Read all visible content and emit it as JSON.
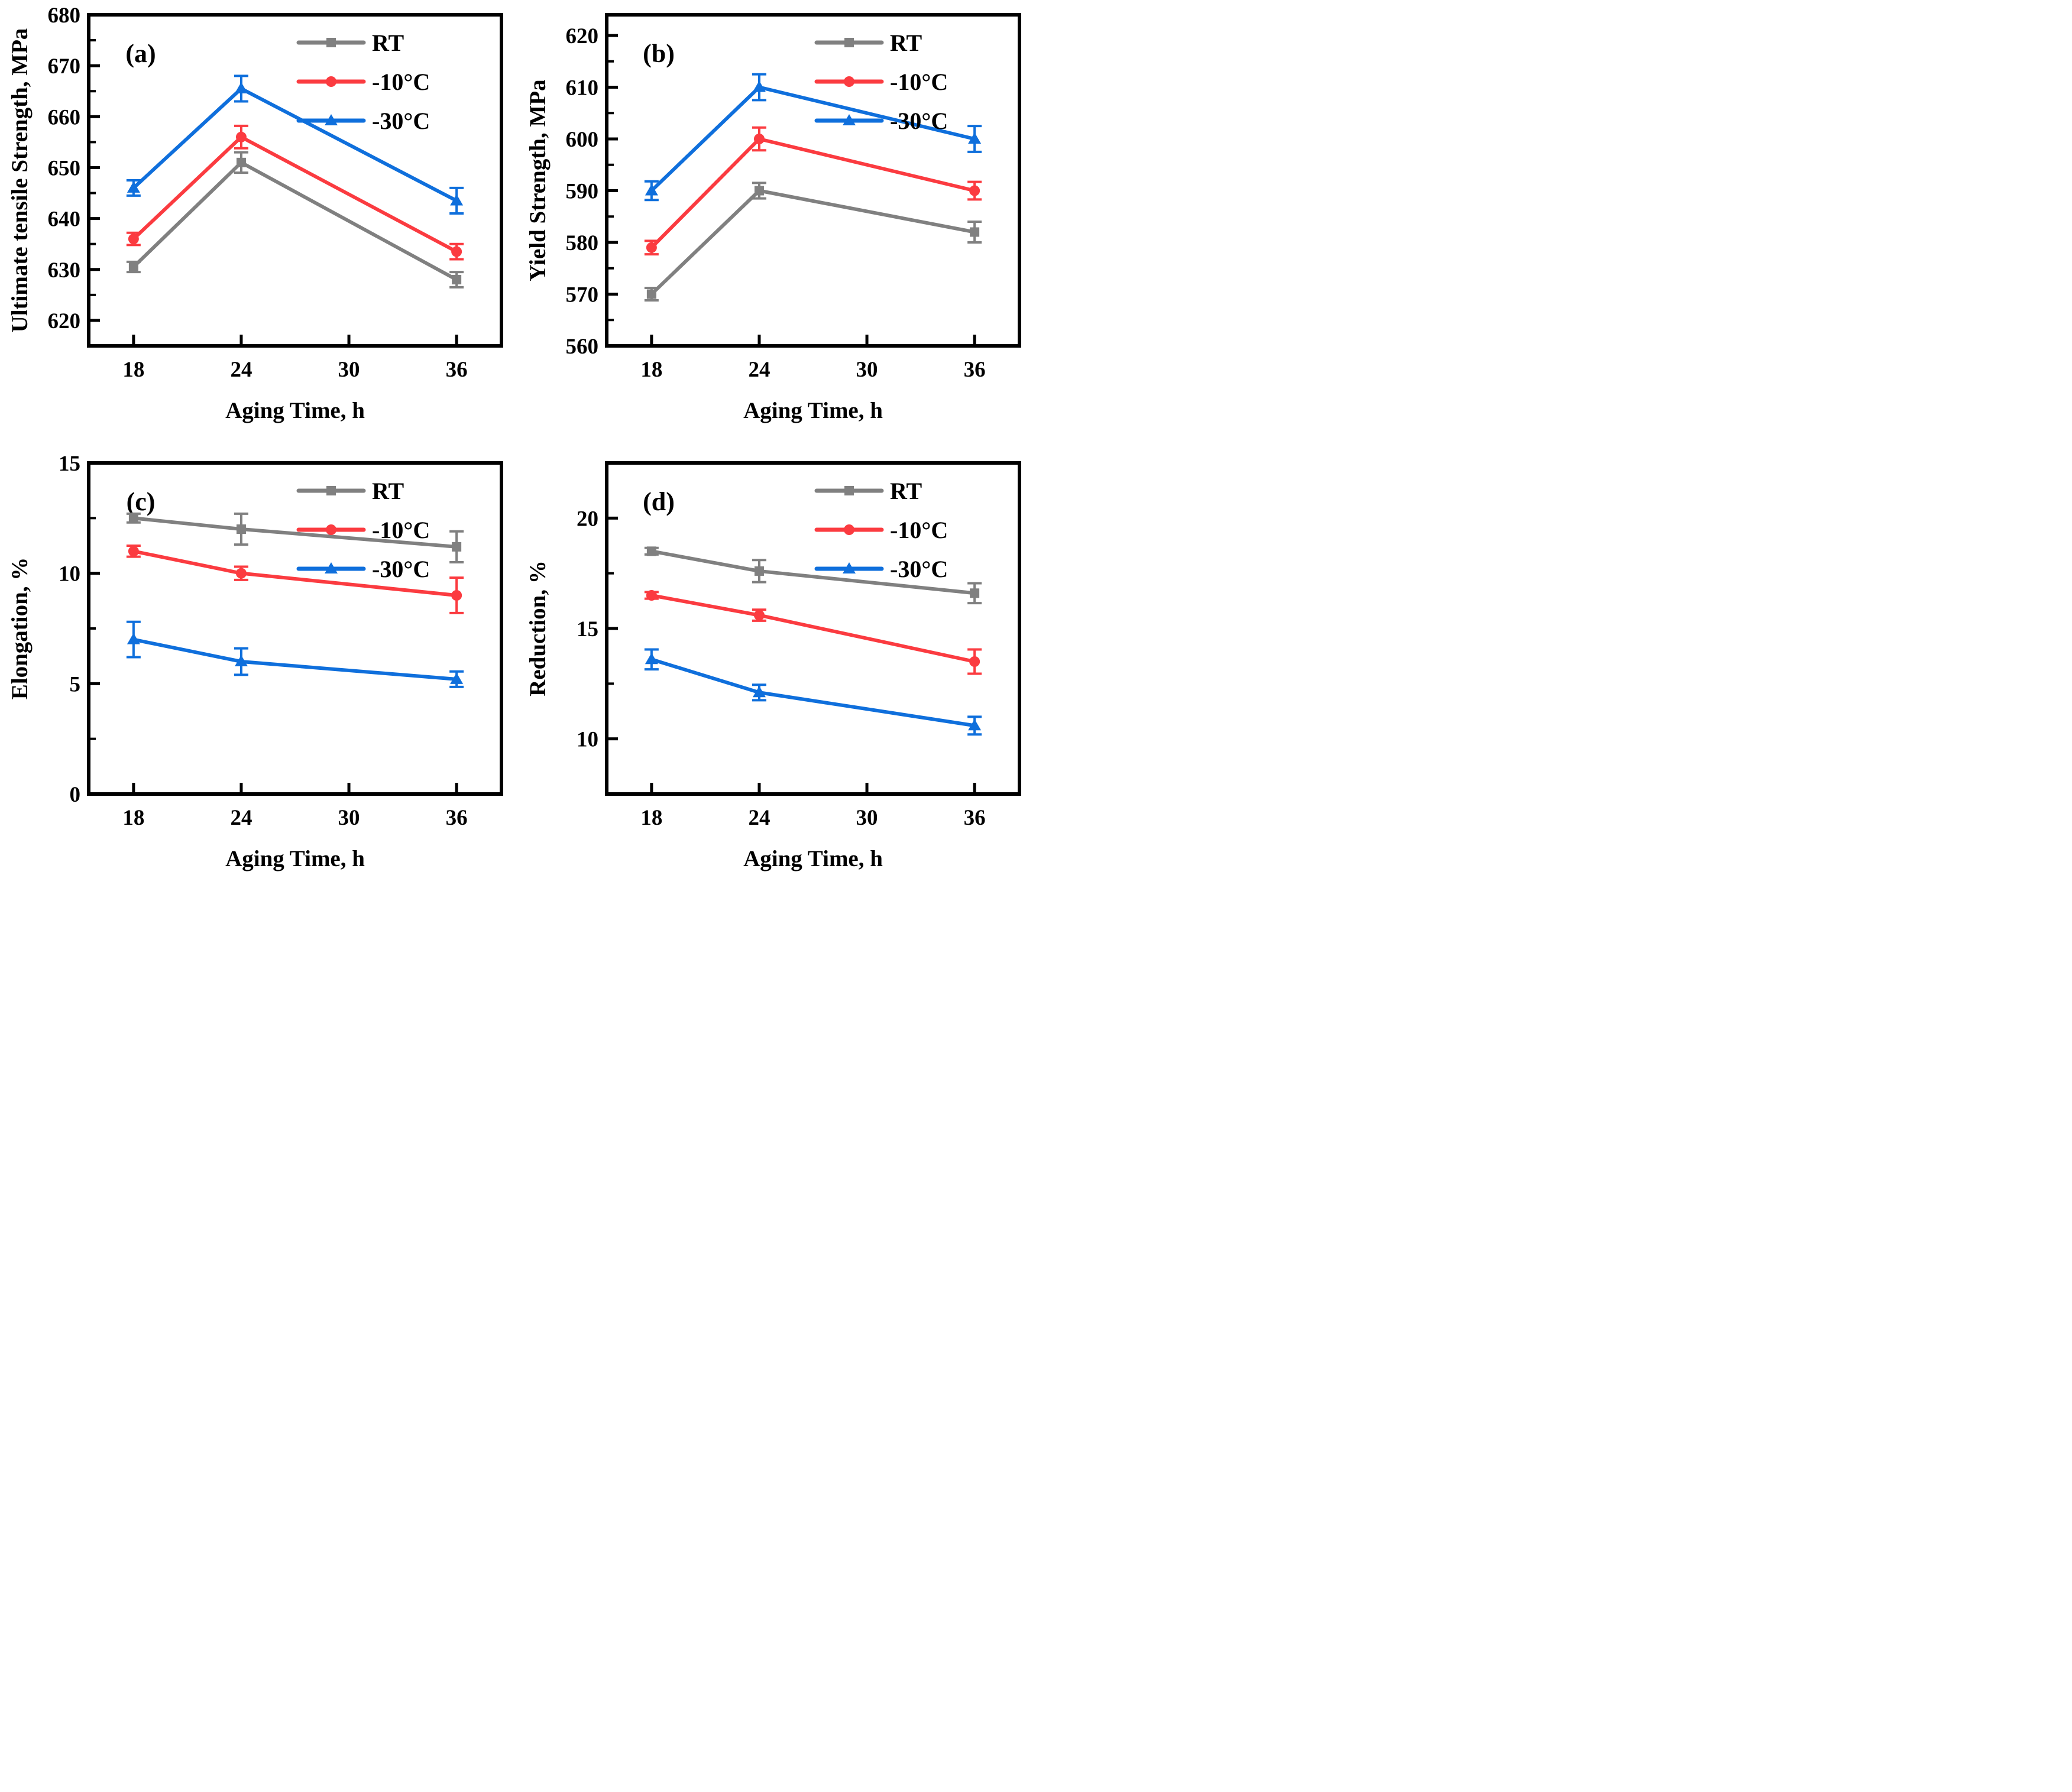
{
  "figure": {
    "background": "#ffffff",
    "frame_color": "#000000",
    "text_color": "#000000",
    "legend_labels": [
      "RT",
      "-10°C",
      "-30°C"
    ],
    "series_colors": {
      "rt": "#808080",
      "minus10": "#FB3B40",
      "minus30": "#0F6FDC"
    }
  },
  "chart_data": [
    {
      "id": "a",
      "type": "line",
      "panel_label": "(a)",
      "xlabel": "Aging Time, h",
      "ylabel": "Ultimate tensile Strength, MPa",
      "x": [
        18,
        24,
        36
      ],
      "xticks": [
        18,
        24,
        30,
        36
      ],
      "xlim": [
        15.5,
        38.5
      ],
      "ylim": [
        615,
        680
      ],
      "yticks": [
        620,
        630,
        640,
        650,
        660,
        670,
        680
      ],
      "yminor": [
        625,
        635,
        645,
        655,
        665,
        675
      ],
      "grid": false,
      "legend_position": "top-right",
      "series": [
        {
          "name": "RT",
          "marker": "square",
          "color": "#808080",
          "values": [
            630.5,
            651.0,
            628.0
          ],
          "errors": [
            1.0,
            2.0,
            1.5
          ]
        },
        {
          "name": "-10°C",
          "marker": "circle",
          "color": "#FB3B40",
          "values": [
            636.0,
            656.0,
            633.5
          ],
          "errors": [
            1.2,
            2.2,
            1.5
          ]
        },
        {
          "name": "-30°C",
          "marker": "triangle",
          "color": "#0F6FDC",
          "values": [
            646.0,
            665.5,
            643.5
          ],
          "errors": [
            1.5,
            2.5,
            2.5
          ]
        }
      ]
    },
    {
      "id": "b",
      "type": "line",
      "panel_label": "(b)",
      "xlabel": "Aging Time, h",
      "ylabel": "Yield Strength, MPa",
      "x": [
        18,
        24,
        36
      ],
      "xticks": [
        18,
        24,
        30,
        36
      ],
      "xlim": [
        15.5,
        38.5
      ],
      "ylim": [
        560,
        624
      ],
      "yticks": [
        560,
        570,
        580,
        590,
        600,
        610,
        620
      ],
      "yminor": [
        565,
        575,
        585,
        595,
        605,
        615
      ],
      "grid": false,
      "legend_position": "top-right",
      "series": [
        {
          "name": "RT",
          "marker": "square",
          "color": "#808080",
          "values": [
            570.0,
            590.0,
            582.0
          ],
          "errors": [
            1.2,
            1.5,
            2.0
          ]
        },
        {
          "name": "-10°C",
          "marker": "circle",
          "color": "#FB3B40",
          "values": [
            579.0,
            600.0,
            590.0
          ],
          "errors": [
            1.3,
            2.2,
            1.7
          ]
        },
        {
          "name": "-30°C",
          "marker": "triangle",
          "color": "#0F6FDC",
          "values": [
            590.0,
            610.0,
            600.0
          ],
          "errors": [
            1.8,
            2.5,
            2.5
          ]
        }
      ]
    },
    {
      "id": "c",
      "type": "line",
      "panel_label": "(c)",
      "xlabel": "Aging Time, h",
      "ylabel": "Elongation, %",
      "x": [
        18,
        24,
        36
      ],
      "xticks": [
        18,
        24,
        30,
        36
      ],
      "xlim": [
        15.5,
        38.5
      ],
      "ylim": [
        0,
        15
      ],
      "yticks": [
        0,
        5,
        10,
        15
      ],
      "yminor": [
        2.5,
        7.5,
        12.5
      ],
      "grid": false,
      "legend_position": "top-right",
      "series": [
        {
          "name": "RT",
          "marker": "square",
          "color": "#808080",
          "values": [
            12.5,
            12.0,
            11.2
          ],
          "errors": [
            0.2,
            0.7,
            0.7
          ]
        },
        {
          "name": "-10°C",
          "marker": "circle",
          "color": "#FB3B40",
          "values": [
            11.0,
            10.0,
            9.0
          ],
          "errors": [
            0.25,
            0.3,
            0.8
          ]
        },
        {
          "name": "-30°C",
          "marker": "triangle",
          "color": "#0F6FDC",
          "values": [
            7.0,
            6.0,
            5.2
          ],
          "errors": [
            0.8,
            0.6,
            0.35
          ]
        }
      ]
    },
    {
      "id": "d",
      "type": "line",
      "panel_label": "(d)",
      "xlabel": "Aging Time, h",
      "ylabel": "Reduction, %",
      "x": [
        18,
        24,
        36
      ],
      "xticks": [
        18,
        24,
        30,
        36
      ],
      "xlim": [
        15.5,
        38.5
      ],
      "ylim": [
        7.5,
        22.5
      ],
      "yticks": [
        10,
        15,
        20
      ],
      "yminor": [
        12.5,
        17.5
      ],
      "grid": false,
      "legend_position": "top-right",
      "series": [
        {
          "name": "RT",
          "marker": "square",
          "color": "#808080",
          "values": [
            18.5,
            17.6,
            16.6
          ],
          "errors": [
            0.15,
            0.5,
            0.45
          ]
        },
        {
          "name": "-10°C",
          "marker": "circle",
          "color": "#FB3B40",
          "values": [
            16.5,
            15.6,
            13.5
          ],
          "errors": [
            0.15,
            0.25,
            0.55
          ]
        },
        {
          "name": "-30°C",
          "marker": "triangle",
          "color": "#0F6FDC",
          "values": [
            13.6,
            12.1,
            10.6
          ],
          "errors": [
            0.45,
            0.35,
            0.4
          ]
        }
      ]
    }
  ]
}
